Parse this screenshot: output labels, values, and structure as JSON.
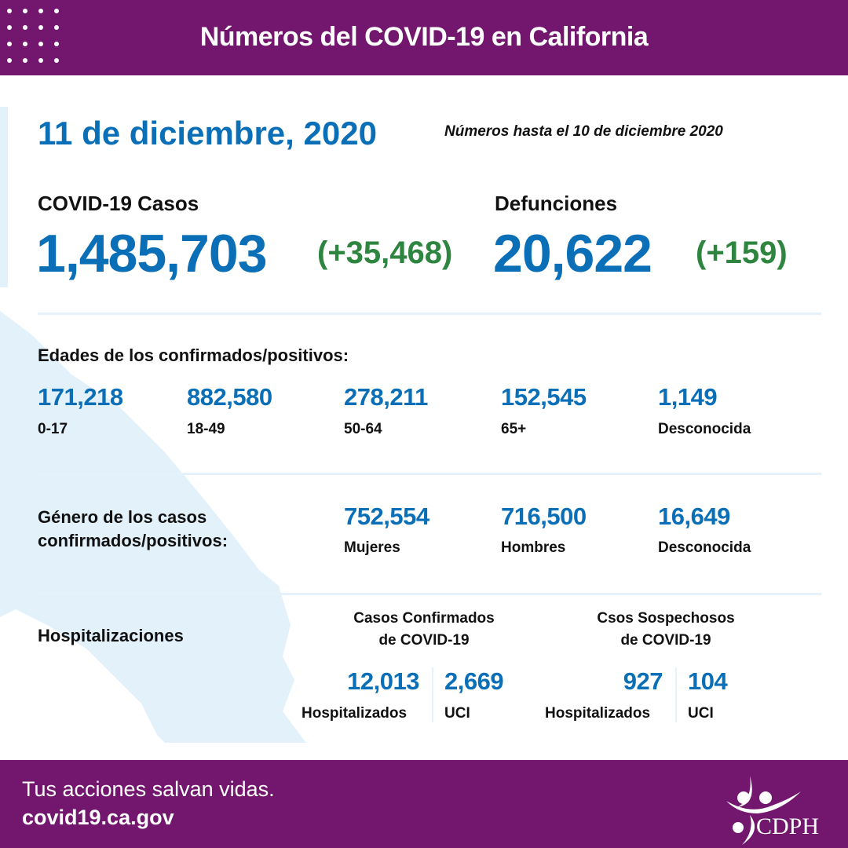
{
  "header": {
    "title": "Números del COVID-19 en California"
  },
  "date": "11 de diciembre, 2020",
  "as_of": "Números hasta el 10 de diciembre 2020",
  "cases": {
    "label": "COVID-19 Casos",
    "value": "1,485,703",
    "change": "(+35,468)"
  },
  "deaths": {
    "label": "Defunciones",
    "value": "20,622",
    "change": "(+159)"
  },
  "ages": {
    "heading": "Edades de los confirmados/positivos:",
    "items": [
      {
        "value": "171,218",
        "label": "0-17"
      },
      {
        "value": "882,580",
        "label": "18-49"
      },
      {
        "value": "278,211",
        "label": "50-64"
      },
      {
        "value": "152,545",
        "label": "65+"
      },
      {
        "value": "1,149",
        "label": "Desconocida"
      }
    ]
  },
  "gender": {
    "heading_1": "Género de los casos",
    "heading_2": "confirmados/positivos:",
    "items": [
      {
        "value": "752,554",
        "label": "Mujeres"
      },
      {
        "value": "716,500",
        "label": "Hombres"
      },
      {
        "value": "16,649",
        "label": "Desconocida"
      }
    ]
  },
  "hosp": {
    "heading": "Hospitalizaciones",
    "confirmed": {
      "title_1": "Casos Confirmados",
      "title_2": "de COVID-19",
      "hospitalized": "12,013",
      "hospitalized_label": "Hospitalizados",
      "icu": "2,669",
      "icu_label": "UCI"
    },
    "suspected": {
      "title_1": "Csos Sospechosos",
      "title_2": "de COVID-19",
      "hospitalized": "927",
      "hospitalized_label": "Hospitalizados",
      "icu": "104",
      "icu_label": "UCI"
    }
  },
  "footer": {
    "tagline": "Tus acciones salvan vidas.",
    "url": "covid19.ca.gov",
    "logo_text": "CDPH"
  },
  "colors": {
    "purple": "#72166e",
    "blue": "#0a6fb7",
    "green": "#2e8540",
    "map": "#e3f1fb"
  }
}
